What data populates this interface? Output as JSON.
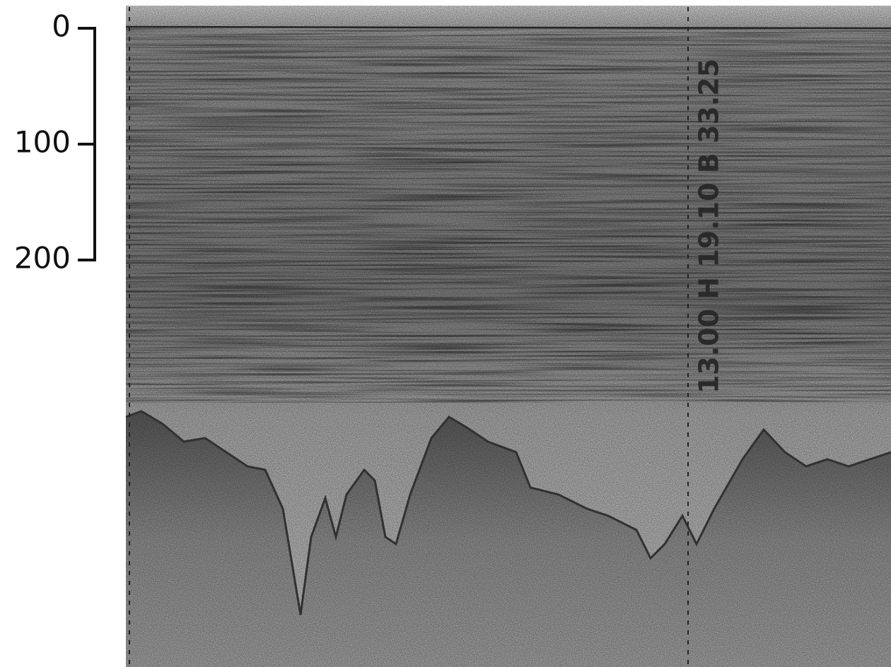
{
  "scale": {
    "ticks": [
      0,
      100,
      200
    ]
  },
  "annotation": "13.00 H 19.10 B 33.25"
}
